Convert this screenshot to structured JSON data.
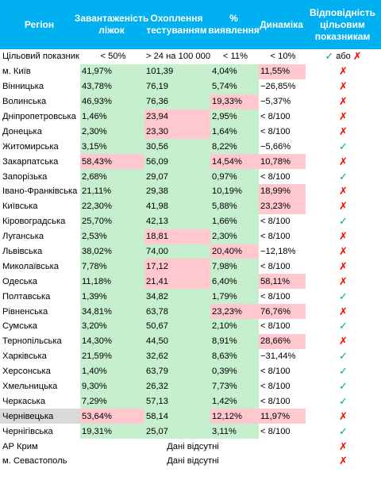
{
  "headers": [
    "Регіон",
    "Завантаженість ліжок",
    "Охоплення тестуванням",
    "% виявлення",
    "Динаміка",
    "Відповідність цільовим показникам"
  ],
  "target": {
    "label": "Цільовий показник",
    "values": [
      "< 50%",
      "> 24 на 100 000",
      "< 11%",
      "< 10%"
    ],
    "ok_symbol": "✓",
    "or_text": "або",
    "bad_symbol": "✗"
  },
  "rows": [
    {
      "region": "м. Київ",
      "vals": [
        "41,97%",
        "101,39",
        "4,04%",
        "11,55%"
      ],
      "fill": [
        "g",
        "g",
        "g",
        "p"
      ],
      "ok": false
    },
    {
      "region": "Вінницька",
      "vals": [
        "43,78%",
        "76,19",
        "5,74%",
        "−26,85%"
      ],
      "fill": [
        "g",
        "g",
        "g",
        ""
      ],
      "ok": false
    },
    {
      "region": "Волинська",
      "vals": [
        "46,93%",
        "76,36",
        "19,33%",
        "−5,37%"
      ],
      "fill": [
        "g",
        "g",
        "p",
        ""
      ],
      "ok": false
    },
    {
      "region": "Дніпропетровська",
      "vals": [
        "1,46%",
        "23,94",
        "2,95%",
        "< 8/100"
      ],
      "fill": [
        "g",
        "p",
        "g",
        ""
      ],
      "ok": false
    },
    {
      "region": "Донецька",
      "vals": [
        "2,30%",
        "23,30",
        "1,64%",
        "< 8/100"
      ],
      "fill": [
        "g",
        "p",
        "g",
        ""
      ],
      "ok": false
    },
    {
      "region": "Житомирська",
      "vals": [
        "3,15%",
        "30,56",
        "8,22%",
        "−5,66%"
      ],
      "fill": [
        "g",
        "g",
        "g",
        ""
      ],
      "ok": true
    },
    {
      "region": "Закарпатська",
      "vals": [
        "58,43%",
        "56,09",
        "14,54%",
        "10,78%"
      ],
      "fill": [
        "p",
        "g",
        "p",
        "p"
      ],
      "ok": false
    },
    {
      "region": "Запорізька",
      "vals": [
        "2,68%",
        "29,07",
        "0,97%",
        "< 8/100"
      ],
      "fill": [
        "g",
        "g",
        "g",
        ""
      ],
      "ok": true
    },
    {
      "region": "Івано-Франківська",
      "vals": [
        "21,11%",
        "29,38",
        "10,19%",
        "18,99%"
      ],
      "fill": [
        "g",
        "g",
        "g",
        "p"
      ],
      "ok": false
    },
    {
      "region": "Київська",
      "vals": [
        "22,30%",
        "41,98",
        "5,88%",
        "23,23%"
      ],
      "fill": [
        "g",
        "g",
        "g",
        "p"
      ],
      "ok": false
    },
    {
      "region": "Кіровоградська",
      "vals": [
        "25,70%",
        "42,13",
        "1,66%",
        "< 8/100"
      ],
      "fill": [
        "g",
        "g",
        "g",
        ""
      ],
      "ok": true
    },
    {
      "region": "Луганська",
      "vals": [
        "2,53%",
        "18,81",
        "2,30%",
        "< 8/100"
      ],
      "fill": [
        "g",
        "p",
        "g",
        ""
      ],
      "ok": false
    },
    {
      "region": "Львівська",
      "vals": [
        "38,02%",
        "74,00",
        "20,40%",
        "−12,18%"
      ],
      "fill": [
        "g",
        "g",
        "p",
        ""
      ],
      "ok": false
    },
    {
      "region": "Миколаївська",
      "vals": [
        "7,78%",
        "17,12",
        "7,98%",
        "< 8/100"
      ],
      "fill": [
        "g",
        "p",
        "g",
        ""
      ],
      "ok": false
    },
    {
      "region": "Одеська",
      "vals": [
        "11,18%",
        "21,41",
        "6,40%",
        "58,11%"
      ],
      "fill": [
        "g",
        "p",
        "g",
        "p"
      ],
      "ok": false
    },
    {
      "region": "Полтавська",
      "vals": [
        "1,39%",
        "34,82",
        "1,79%",
        "< 8/100"
      ],
      "fill": [
        "g",
        "g",
        "g",
        ""
      ],
      "ok": true
    },
    {
      "region": "Рівненська",
      "vals": [
        "34,81%",
        "63,78",
        "23,23%",
        "76,76%"
      ],
      "fill": [
        "g",
        "g",
        "p",
        "p"
      ],
      "ok": false
    },
    {
      "region": "Сумська",
      "vals": [
        "3,20%",
        "50,67",
        "2,10%",
        "< 8/100"
      ],
      "fill": [
        "g",
        "g",
        "g",
        ""
      ],
      "ok": true
    },
    {
      "region": "Тернопільська",
      "vals": [
        "14,30%",
        "44,50",
        "8,91%",
        "28,66%"
      ],
      "fill": [
        "g",
        "g",
        "g",
        "p"
      ],
      "ok": false
    },
    {
      "region": "Харківська",
      "vals": [
        "21,59%",
        "32,62",
        "8,63%",
        "−31,44%"
      ],
      "fill": [
        "g",
        "g",
        "g",
        ""
      ],
      "ok": true
    },
    {
      "region": "Херсонська",
      "vals": [
        "1,40%",
        "63,79",
        "0,39%",
        "< 8/100"
      ],
      "fill": [
        "g",
        "g",
        "g",
        ""
      ],
      "ok": true
    },
    {
      "region": "Хмельницька",
      "vals": [
        "9,30%",
        "26,32",
        "7,73%",
        "< 8/100"
      ],
      "fill": [
        "g",
        "g",
        "g",
        ""
      ],
      "ok": true
    },
    {
      "region": "Черкаська",
      "vals": [
        "7,29%",
        "57,13",
        "1,42%",
        "< 8/100"
      ],
      "fill": [
        "g",
        "g",
        "g",
        ""
      ],
      "ok": true
    },
    {
      "region": "Чернівецька",
      "vals": [
        "53,64%",
        "58,14",
        "12,12%",
        "11,97%"
      ],
      "fill": [
        "p",
        "g",
        "p",
        "p"
      ],
      "ok": false,
      "highlight": true
    },
    {
      "region": "Чернігівська",
      "vals": [
        "19,31%",
        "25,07",
        "3,11%",
        "< 8/100"
      ],
      "fill": [
        "g",
        "g",
        "g",
        ""
      ],
      "ok": true
    }
  ],
  "no_data_rows": [
    {
      "region": "АР Крим",
      "text": "Дані відсутні"
    },
    {
      "region": "м. Севастополь",
      "text": "Дані відсутні"
    }
  ],
  "colors": {
    "header": "#00b0f0",
    "good_fill": "#c6efce",
    "bad_fill": "#ffc7ce",
    "ok": "#00b050",
    "bad": "#ff0000"
  }
}
